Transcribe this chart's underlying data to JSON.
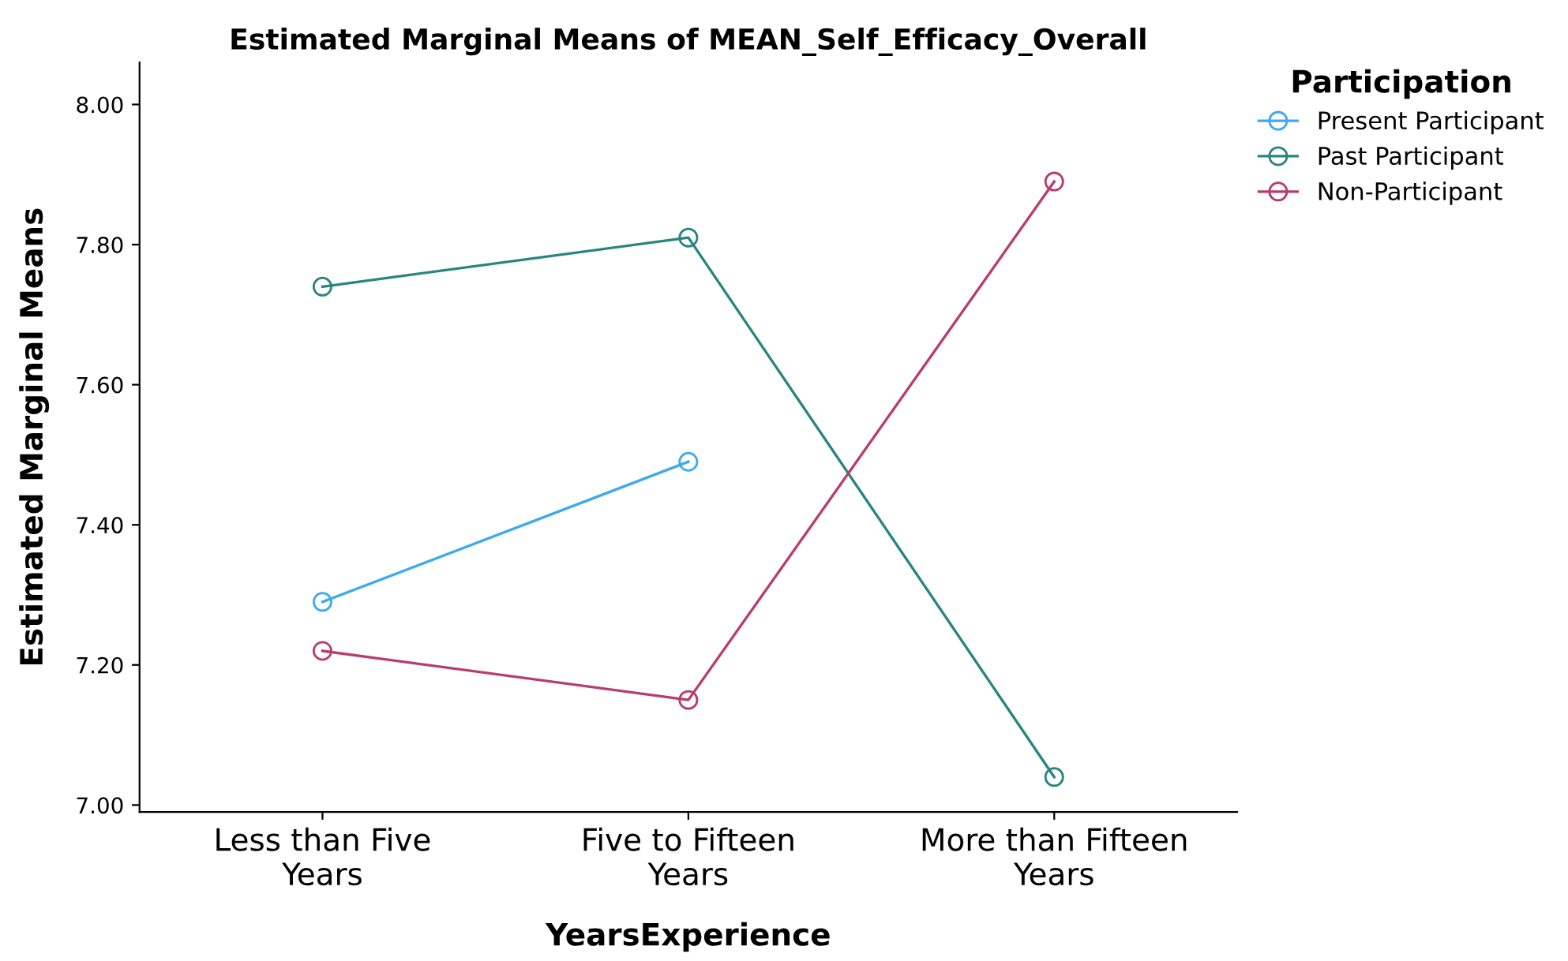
{
  "chart_data": {
    "type": "line",
    "title": "Estimated Marginal Means of MEAN_Self_Efficacy_Overall",
    "xlabel": "YearsExperience",
    "ylabel": "Estimated Marginal Means",
    "legend_title": "Participation",
    "categories": [
      "Less than Five\nYears",
      "Five to Fifteen\nYears",
      "More than Fifteen\nYears"
    ],
    "series": [
      {
        "name": "Present Participant",
        "color": "#3fa9f0",
        "values": [
          7.29,
          7.49,
          null
        ]
      },
      {
        "name": "Past Participant",
        "color": "#2a8482",
        "values": [
          7.74,
          7.81,
          7.04
        ]
      },
      {
        "name": "Non-Participant",
        "color": "#b83d6c",
        "values": [
          7.22,
          7.15,
          7.89
        ]
      }
    ],
    "ylim": [
      6.99,
      8.06
    ],
    "yticks": [
      {
        "value": 7.0,
        "label": "7.00"
      },
      {
        "value": 7.2,
        "label": "7.20"
      },
      {
        "value": 7.4,
        "label": "7.40"
      },
      {
        "value": 7.6,
        "label": "7.60"
      },
      {
        "value": 7.8,
        "label": "7.80"
      },
      {
        "value": 8.0,
        "label": "8.00"
      }
    ],
    "grid": false,
    "legend": "top right",
    "marker": "circle",
    "line_style": "solid"
  }
}
